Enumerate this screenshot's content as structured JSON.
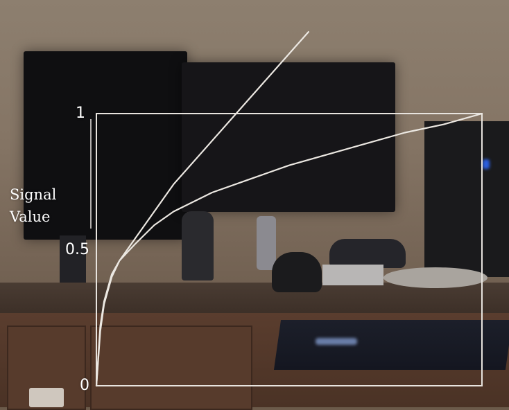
{
  "chart_data": {
    "type": "line",
    "title": "",
    "xlabel": "",
    "ylabel": "Signal Value",
    "ylim": [
      0,
      1
    ],
    "xlim": [
      0,
      1
    ],
    "y_ticks": [
      "0",
      "0.5",
      "1"
    ],
    "grid": false,
    "frame_color": "#e8e4df",
    "series": [
      {
        "color": "#ece8e2",
        "x": [
          0,
          0.01,
          0.02,
          0.04,
          0.06,
          0.08,
          0.1,
          0.15,
          0.2,
          0.3,
          0.4,
          0.5,
          0.55
        ],
        "y": [
          0,
          0.2,
          0.3,
          0.4,
          0.46,
          0.5,
          0.54,
          0.64,
          0.74,
          0.9,
          1.06,
          1.22,
          1.3
        ]
      },
      {
        "color": "#ece8e2",
        "x": [
          0,
          0.01,
          0.02,
          0.04,
          0.06,
          0.08,
          0.1,
          0.15,
          0.2,
          0.3,
          0.4,
          0.5,
          0.6,
          0.7,
          0.8,
          0.9,
          1.0
        ],
        "y": [
          0,
          0.22,
          0.31,
          0.41,
          0.46,
          0.49,
          0.52,
          0.59,
          0.64,
          0.71,
          0.76,
          0.81,
          0.85,
          0.89,
          0.93,
          0.96,
          1.0
        ]
      }
    ]
  }
}
